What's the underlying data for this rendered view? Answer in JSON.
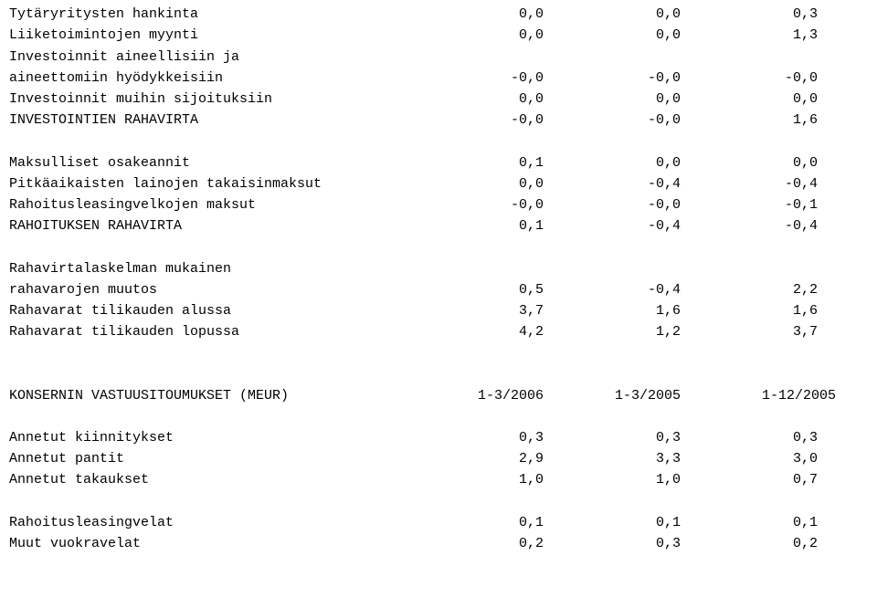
{
  "rows": [
    {
      "label": "Tytäryritysten hankinta",
      "c1": "0,0",
      "c2": "0,0",
      "c3": "0,3"
    },
    {
      "label": "Liiketoimintojen myynti",
      "c1": "0,0",
      "c2": "0,0",
      "c3": "1,3"
    },
    {
      "label": "Investoinnit aineellisiin ja",
      "c1": "",
      "c2": "",
      "c3": ""
    },
    {
      "label": "aineettomiin hyödykkeisiin",
      "c1": "-0,0",
      "c2": "-0,0",
      "c3": "-0,0"
    },
    {
      "label": "Investoinnit muihin sijoituksiin",
      "c1": "0,0",
      "c2": "0,0",
      "c3": "0,0"
    },
    {
      "label": "INVESTOINTIEN RAHAVIRTA",
      "c1": "-0,0",
      "c2": "-0,0",
      "c3": "1,6"
    }
  ],
  "rows2": [
    {
      "label": "Maksulliset osakeannit",
      "c1": "0,1",
      "c2": "0,0",
      "c3": "0,0"
    },
    {
      "label": "Pitkäaikaisten lainojen takaisinmaksut",
      "c1": "0,0",
      "c2": "-0,4",
      "c3": "-0,4"
    },
    {
      "label": "Rahoitusleasingvelkojen maksut",
      "c1": "-0,0",
      "c2": "-0,0",
      "c3": "-0,1"
    },
    {
      "label": "RAHOITUKSEN RAHAVIRTA",
      "c1": "0,1",
      "c2": "-0,4",
      "c3": "-0,4"
    }
  ],
  "rows3": [
    {
      "label": "Rahavirtalaskelman mukainen",
      "c1": "",
      "c2": "",
      "c3": ""
    },
    {
      "label": "rahavarojen muutos",
      "c1": "0,5",
      "c2": "-0,4",
      "c3": "2,2"
    },
    {
      "label": "Rahavarat tilikauden alussa",
      "c1": "3,7",
      "c2": "1,6",
      "c3": "1,6"
    },
    {
      "label": "Rahavarat tilikauden lopussa",
      "c1": "4,2",
      "c2": "1,2",
      "c3": "3,7"
    }
  ],
  "header2": {
    "label": "KONSERNIN VASTUUSITOUMUKSET (MEUR)",
    "c1": "1-3/2006",
    "c2": "1-3/2005",
    "c3": "1-12/2005"
  },
  "rows4": [
    {
      "label": "Annetut kiinnitykset",
      "c1": "0,3",
      "c2": "0,3",
      "c3": "0,3"
    },
    {
      "label": "Annetut pantit",
      "c1": "2,9",
      "c2": "3,3",
      "c3": "3,0"
    },
    {
      "label": "Annetut takaukset",
      "c1": "1,0",
      "c2": "1,0",
      "c3": "0,7"
    }
  ],
  "rows5": [
    {
      "label": "Rahoitusleasingvelat",
      "c1": "0,1",
      "c2": "0,1",
      "c3": "0,1"
    },
    {
      "label": "Muut vuokravelat",
      "c1": "0,2",
      "c2": "0,3",
      "c3": "0,2"
    }
  ]
}
